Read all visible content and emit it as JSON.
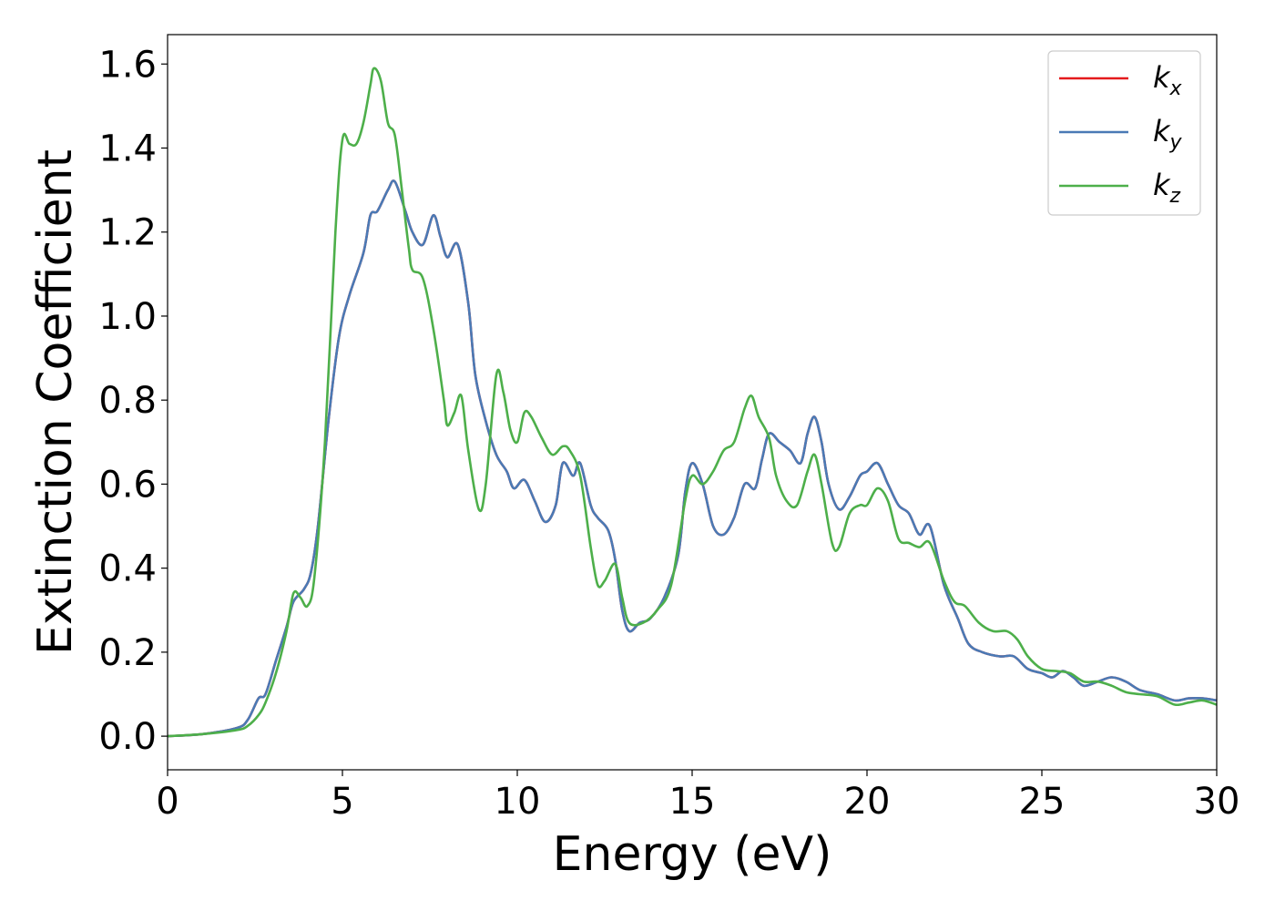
{
  "chart_data": {
    "type": "line",
    "xlabel": "Energy (eV)",
    "ylabel": "Extinction Coefficient",
    "xlim": [
      0,
      30
    ],
    "ylim": [
      -0.08,
      1.67
    ],
    "xticks": [
      0,
      5,
      10,
      15,
      20,
      25,
      30
    ],
    "xtick_labels": [
      "0",
      "5",
      "10",
      "15",
      "20",
      "25",
      "30"
    ],
    "yticks": [
      0.0,
      0.2,
      0.4,
      0.6,
      0.8,
      1.0,
      1.2,
      1.4,
      1.6
    ],
    "ytick_labels": [
      "0.0",
      "0.2",
      "0.4",
      "0.6",
      "0.8",
      "1.0",
      "1.2",
      "1.4",
      "1.6"
    ],
    "grid": false,
    "legend_position": "top-right",
    "series": [
      {
        "name": "k",
        "subscript": "x",
        "color": "#e41a1c",
        "points": [
          [
            0,
            0
          ],
          [
            1,
            0.005
          ],
          [
            2,
            0.02
          ],
          [
            2.3,
            0.04
          ],
          [
            2.6,
            0.09
          ],
          [
            2.8,
            0.1
          ],
          [
            3.1,
            0.18
          ],
          [
            3.4,
            0.26
          ],
          [
            3.6,
            0.32
          ],
          [
            3.9,
            0.35
          ],
          [
            4.1,
            0.39
          ],
          [
            4.3,
            0.5
          ],
          [
            4.6,
            0.75
          ],
          [
            4.9,
            0.95
          ],
          [
            5.2,
            1.05
          ],
          [
            5.6,
            1.15
          ],
          [
            5.8,
            1.24
          ],
          [
            6.0,
            1.25
          ],
          [
            6.3,
            1.3
          ],
          [
            6.5,
            1.32
          ],
          [
            6.8,
            1.25
          ],
          [
            7.0,
            1.2
          ],
          [
            7.3,
            1.17
          ],
          [
            7.6,
            1.24
          ],
          [
            7.8,
            1.19
          ],
          [
            8.0,
            1.14
          ],
          [
            8.3,
            1.17
          ],
          [
            8.6,
            1.03
          ],
          [
            8.8,
            0.86
          ],
          [
            9.1,
            0.75
          ],
          [
            9.4,
            0.67
          ],
          [
            9.7,
            0.63
          ],
          [
            9.9,
            0.59
          ],
          [
            10.2,
            0.61
          ],
          [
            10.5,
            0.56
          ],
          [
            10.8,
            0.51
          ],
          [
            11.1,
            0.55
          ],
          [
            11.3,
            0.65
          ],
          [
            11.6,
            0.62
          ],
          [
            11.8,
            0.65
          ],
          [
            12.1,
            0.55
          ],
          [
            12.3,
            0.52
          ],
          [
            12.6,
            0.49
          ],
          [
            12.8,
            0.42
          ],
          [
            13.0,
            0.3
          ],
          [
            13.2,
            0.25
          ],
          [
            13.5,
            0.27
          ],
          [
            13.8,
            0.28
          ],
          [
            14.2,
            0.33
          ],
          [
            14.6,
            0.43
          ],
          [
            14.8,
            0.58
          ],
          [
            15.0,
            0.65
          ],
          [
            15.3,
            0.6
          ],
          [
            15.6,
            0.5
          ],
          [
            15.9,
            0.48
          ],
          [
            16.2,
            0.52
          ],
          [
            16.5,
            0.6
          ],
          [
            16.8,
            0.59
          ],
          [
            17.0,
            0.66
          ],
          [
            17.2,
            0.72
          ],
          [
            17.5,
            0.7
          ],
          [
            17.8,
            0.68
          ],
          [
            18.1,
            0.65
          ],
          [
            18.3,
            0.72
          ],
          [
            18.5,
            0.76
          ],
          [
            18.7,
            0.7
          ],
          [
            18.9,
            0.6
          ],
          [
            19.2,
            0.54
          ],
          [
            19.5,
            0.57
          ],
          [
            19.8,
            0.62
          ],
          [
            20.0,
            0.63
          ],
          [
            20.3,
            0.65
          ],
          [
            20.6,
            0.6
          ],
          [
            20.9,
            0.55
          ],
          [
            21.2,
            0.53
          ],
          [
            21.5,
            0.48
          ],
          [
            21.8,
            0.5
          ],
          [
            22.2,
            0.36
          ],
          [
            22.6,
            0.28
          ],
          [
            22.9,
            0.22
          ],
          [
            23.3,
            0.2
          ],
          [
            23.8,
            0.19
          ],
          [
            24.2,
            0.19
          ],
          [
            24.6,
            0.16
          ],
          [
            25.0,
            0.15
          ],
          [
            25.3,
            0.14
          ],
          [
            25.6,
            0.155
          ],
          [
            25.9,
            0.14
          ],
          [
            26.2,
            0.12
          ],
          [
            26.6,
            0.13
          ],
          [
            27.0,
            0.14
          ],
          [
            27.4,
            0.13
          ],
          [
            27.8,
            0.11
          ],
          [
            28.3,
            0.1
          ],
          [
            28.8,
            0.085
          ],
          [
            29.2,
            0.09
          ],
          [
            29.6,
            0.09
          ],
          [
            30,
            0.085
          ]
        ]
      },
      {
        "name": "k",
        "subscript": "y",
        "color": "#4a7ab5",
        "points": [
          [
            0,
            0
          ],
          [
            1,
            0.005
          ],
          [
            2,
            0.02
          ],
          [
            2.3,
            0.04
          ],
          [
            2.6,
            0.09
          ],
          [
            2.8,
            0.1
          ],
          [
            3.1,
            0.18
          ],
          [
            3.4,
            0.26
          ],
          [
            3.6,
            0.32
          ],
          [
            3.9,
            0.35
          ],
          [
            4.1,
            0.39
          ],
          [
            4.3,
            0.5
          ],
          [
            4.6,
            0.75
          ],
          [
            4.9,
            0.95
          ],
          [
            5.2,
            1.05
          ],
          [
            5.6,
            1.15
          ],
          [
            5.8,
            1.24
          ],
          [
            6.0,
            1.25
          ],
          [
            6.3,
            1.3
          ],
          [
            6.5,
            1.32
          ],
          [
            6.8,
            1.25
          ],
          [
            7.0,
            1.2
          ],
          [
            7.3,
            1.17
          ],
          [
            7.6,
            1.24
          ],
          [
            7.8,
            1.19
          ],
          [
            8.0,
            1.14
          ],
          [
            8.3,
            1.17
          ],
          [
            8.6,
            1.03
          ],
          [
            8.8,
            0.86
          ],
          [
            9.1,
            0.75
          ],
          [
            9.4,
            0.67
          ],
          [
            9.7,
            0.63
          ],
          [
            9.9,
            0.59
          ],
          [
            10.2,
            0.61
          ],
          [
            10.5,
            0.56
          ],
          [
            10.8,
            0.51
          ],
          [
            11.1,
            0.55
          ],
          [
            11.3,
            0.65
          ],
          [
            11.6,
            0.62
          ],
          [
            11.8,
            0.65
          ],
          [
            12.1,
            0.55
          ],
          [
            12.3,
            0.52
          ],
          [
            12.6,
            0.49
          ],
          [
            12.8,
            0.42
          ],
          [
            13.0,
            0.3
          ],
          [
            13.2,
            0.25
          ],
          [
            13.5,
            0.27
          ],
          [
            13.8,
            0.28
          ],
          [
            14.2,
            0.33
          ],
          [
            14.6,
            0.43
          ],
          [
            14.8,
            0.58
          ],
          [
            15.0,
            0.65
          ],
          [
            15.3,
            0.6
          ],
          [
            15.6,
            0.5
          ],
          [
            15.9,
            0.48
          ],
          [
            16.2,
            0.52
          ],
          [
            16.5,
            0.6
          ],
          [
            16.8,
            0.59
          ],
          [
            17.0,
            0.66
          ],
          [
            17.2,
            0.72
          ],
          [
            17.5,
            0.7
          ],
          [
            17.8,
            0.68
          ],
          [
            18.1,
            0.65
          ],
          [
            18.3,
            0.72
          ],
          [
            18.5,
            0.76
          ],
          [
            18.7,
            0.7
          ],
          [
            18.9,
            0.6
          ],
          [
            19.2,
            0.54
          ],
          [
            19.5,
            0.57
          ],
          [
            19.8,
            0.62
          ],
          [
            20.0,
            0.63
          ],
          [
            20.3,
            0.65
          ],
          [
            20.6,
            0.6
          ],
          [
            20.9,
            0.55
          ],
          [
            21.2,
            0.53
          ],
          [
            21.5,
            0.48
          ],
          [
            21.8,
            0.5
          ],
          [
            22.2,
            0.36
          ],
          [
            22.6,
            0.28
          ],
          [
            22.9,
            0.22
          ],
          [
            23.3,
            0.2
          ],
          [
            23.8,
            0.19
          ],
          [
            24.2,
            0.19
          ],
          [
            24.6,
            0.16
          ],
          [
            25.0,
            0.15
          ],
          [
            25.3,
            0.14
          ],
          [
            25.6,
            0.155
          ],
          [
            25.9,
            0.14
          ],
          [
            26.2,
            0.12
          ],
          [
            26.6,
            0.13
          ],
          [
            27.0,
            0.14
          ],
          [
            27.4,
            0.13
          ],
          [
            27.8,
            0.11
          ],
          [
            28.3,
            0.1
          ],
          [
            28.8,
            0.085
          ],
          [
            29.2,
            0.09
          ],
          [
            29.6,
            0.09
          ],
          [
            30,
            0.085
          ]
        ]
      },
      {
        "name": "k",
        "subscript": "z",
        "color": "#4daf4a",
        "points": [
          [
            0,
            0
          ],
          [
            1,
            0.005
          ],
          [
            2,
            0.015
          ],
          [
            2.3,
            0.025
          ],
          [
            2.6,
            0.05
          ],
          [
            2.8,
            0.08
          ],
          [
            3.1,
            0.15
          ],
          [
            3.4,
            0.25
          ],
          [
            3.6,
            0.34
          ],
          [
            3.8,
            0.33
          ],
          [
            4.0,
            0.31
          ],
          [
            4.2,
            0.38
          ],
          [
            4.5,
            0.7
          ],
          [
            4.8,
            1.2
          ],
          [
            5.0,
            1.42
          ],
          [
            5.2,
            1.41
          ],
          [
            5.4,
            1.41
          ],
          [
            5.6,
            1.46
          ],
          [
            5.8,
            1.55
          ],
          [
            5.9,
            1.59
          ],
          [
            6.1,
            1.56
          ],
          [
            6.3,
            1.46
          ],
          [
            6.5,
            1.43
          ],
          [
            6.7,
            1.3
          ],
          [
            6.9,
            1.16
          ],
          [
            7.0,
            1.11
          ],
          [
            7.3,
            1.09
          ],
          [
            7.6,
            0.97
          ],
          [
            7.9,
            0.8
          ],
          [
            8.0,
            0.74
          ],
          [
            8.2,
            0.77
          ],
          [
            8.4,
            0.81
          ],
          [
            8.6,
            0.68
          ],
          [
            8.9,
            0.54
          ],
          [
            9.1,
            0.6
          ],
          [
            9.4,
            0.86
          ],
          [
            9.6,
            0.82
          ],
          [
            9.8,
            0.73
          ],
          [
            10.0,
            0.7
          ],
          [
            10.2,
            0.77
          ],
          [
            10.4,
            0.76
          ],
          [
            10.7,
            0.71
          ],
          [
            11.0,
            0.67
          ],
          [
            11.3,
            0.69
          ],
          [
            11.5,
            0.68
          ],
          [
            11.8,
            0.62
          ],
          [
            12.1,
            0.45
          ],
          [
            12.3,
            0.36
          ],
          [
            12.5,
            0.37
          ],
          [
            12.8,
            0.41
          ],
          [
            13.0,
            0.33
          ],
          [
            13.2,
            0.27
          ],
          [
            13.6,
            0.27
          ],
          [
            14.0,
            0.3
          ],
          [
            14.4,
            0.36
          ],
          [
            14.8,
            0.56
          ],
          [
            15.0,
            0.62
          ],
          [
            15.3,
            0.6
          ],
          [
            15.6,
            0.63
          ],
          [
            15.9,
            0.68
          ],
          [
            16.2,
            0.7
          ],
          [
            16.5,
            0.78
          ],
          [
            16.7,
            0.81
          ],
          [
            16.9,
            0.76
          ],
          [
            17.2,
            0.71
          ],
          [
            17.4,
            0.62
          ],
          [
            17.7,
            0.56
          ],
          [
            18.0,
            0.55
          ],
          [
            18.3,
            0.63
          ],
          [
            18.5,
            0.67
          ],
          [
            18.7,
            0.6
          ],
          [
            19.0,
            0.46
          ],
          [
            19.2,
            0.45
          ],
          [
            19.5,
            0.53
          ],
          [
            19.8,
            0.55
          ],
          [
            20.0,
            0.55
          ],
          [
            20.3,
            0.59
          ],
          [
            20.6,
            0.56
          ],
          [
            20.9,
            0.47
          ],
          [
            21.2,
            0.46
          ],
          [
            21.5,
            0.45
          ],
          [
            21.8,
            0.46
          ],
          [
            22.2,
            0.37
          ],
          [
            22.5,
            0.32
          ],
          [
            22.8,
            0.31
          ],
          [
            23.2,
            0.27
          ],
          [
            23.6,
            0.25
          ],
          [
            24.0,
            0.25
          ],
          [
            24.3,
            0.23
          ],
          [
            24.6,
            0.19
          ],
          [
            25.0,
            0.16
          ],
          [
            25.4,
            0.155
          ],
          [
            25.8,
            0.15
          ],
          [
            26.2,
            0.13
          ],
          [
            26.6,
            0.13
          ],
          [
            27.0,
            0.12
          ],
          [
            27.4,
            0.105
          ],
          [
            27.8,
            0.1
          ],
          [
            28.3,
            0.095
          ],
          [
            28.8,
            0.075
          ],
          [
            29.2,
            0.08
          ],
          [
            29.6,
            0.085
          ],
          [
            30,
            0.075
          ]
        ]
      }
    ]
  }
}
